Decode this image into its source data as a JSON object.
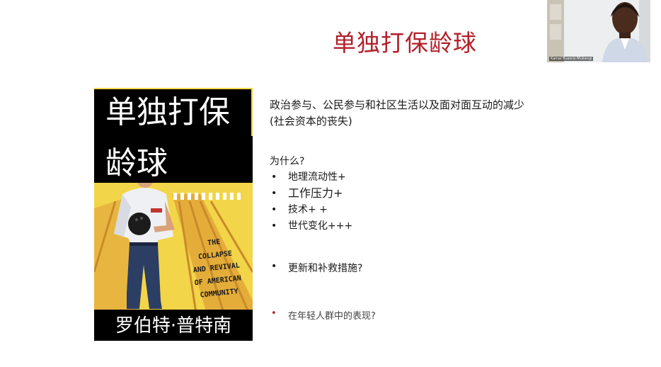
{
  "slide": {
    "title": "单独打保龄球",
    "heading_line1": "政治参与、公民参与和社区生活以及面对面互动的减少",
    "heading_line2": "(社会资本的丧失)",
    "why_label": "为什么?",
    "reasons": [
      "地理流动性+",
      "工作压力+",
      "技术+ +",
      "世代变化+++"
    ],
    "measures": "更新和补救措施?",
    "youth": "在年轻人群中的表现?",
    "bullet": "•"
  },
  "book_cover": {
    "title_line1": "单独打保",
    "title_line2": "龄球",
    "subtitle_lines": [
      "THE",
      "COLLAPSE",
      "AND REVIVAL",
      "OF AMERICAN",
      "COMMUNITY"
    ],
    "author": "罗伯特·普特南"
  },
  "webcam": {
    "participant_name": "Kamal Busoriz-Mukangi"
  },
  "colors": {
    "title_red": "#b3202a",
    "cover_yellow": "#f0d23c",
    "cover_black": "#000000"
  }
}
